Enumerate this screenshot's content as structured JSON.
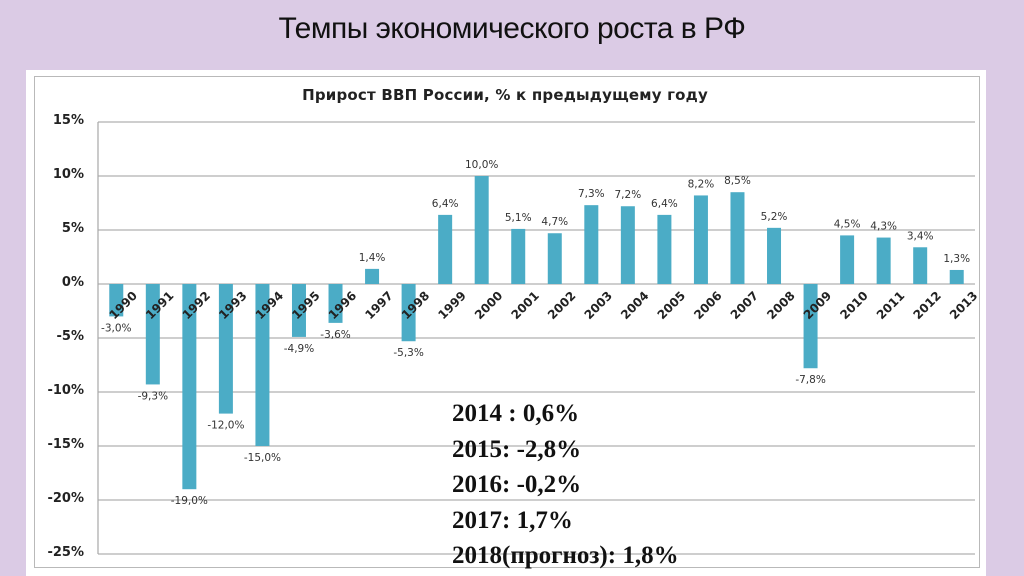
{
  "slide": {
    "title": "Темпы экономического роста в РФ",
    "background_color": "#dbcbe5"
  },
  "chart_data": {
    "type": "bar",
    "title": "Прирост ВВП России, % к предыдущему году",
    "xlabel": "",
    "ylabel": "",
    "ylim": [
      -25,
      15
    ],
    "yticks": [
      "15%",
      "10%",
      "5%",
      "0%",
      "-5%",
      "-10%",
      "-15%",
      "-20%",
      "-25%"
    ],
    "ytick_values": [
      15,
      10,
      5,
      0,
      -5,
      -10,
      -15,
      -20,
      -25
    ],
    "grid": true,
    "legend": "none",
    "bar_color": "#4bacc6",
    "categories": [
      "1990",
      "1991",
      "1992",
      "1993",
      "1994",
      "1995",
      "1996",
      "1997",
      "1998",
      "1999",
      "2000",
      "2001",
      "2002",
      "2003",
      "2004",
      "2005",
      "2006",
      "2007",
      "2008",
      "2009",
      "2010",
      "2011",
      "2012",
      "2013"
    ],
    "values": [
      -3.0,
      -9.3,
      -19.0,
      -12.0,
      -15.0,
      -4.9,
      -3.6,
      1.4,
      -5.3,
      6.4,
      10.0,
      5.1,
      4.7,
      7.3,
      7.2,
      6.4,
      8.2,
      8.5,
      5.2,
      -7.8,
      4.5,
      4.3,
      3.4,
      1.3
    ],
    "data_labels": [
      "-3,0%",
      "-9,3%",
      "-19,0%",
      "-12,0%",
      "-15,0%",
      "-4,9%",
      "-3,6%",
      "1,4%",
      "-5,3%",
      "6,4%",
      "10,0%",
      "5,1%",
      "4,7%",
      "7,3%",
      "7,2%",
      "6,4%",
      "8,2%",
      "8,5%",
      "5,2%",
      "-7,8%",
      "4,5%",
      "4,3%",
      "3,4%",
      "1,3%"
    ]
  },
  "annotation": {
    "lines": [
      "2014 : 0,6%",
      "2015: -2,8%",
      "2016: -0,2%",
      "2017: 1,7%",
      "2018(прогноз): 1,8%"
    ]
  }
}
